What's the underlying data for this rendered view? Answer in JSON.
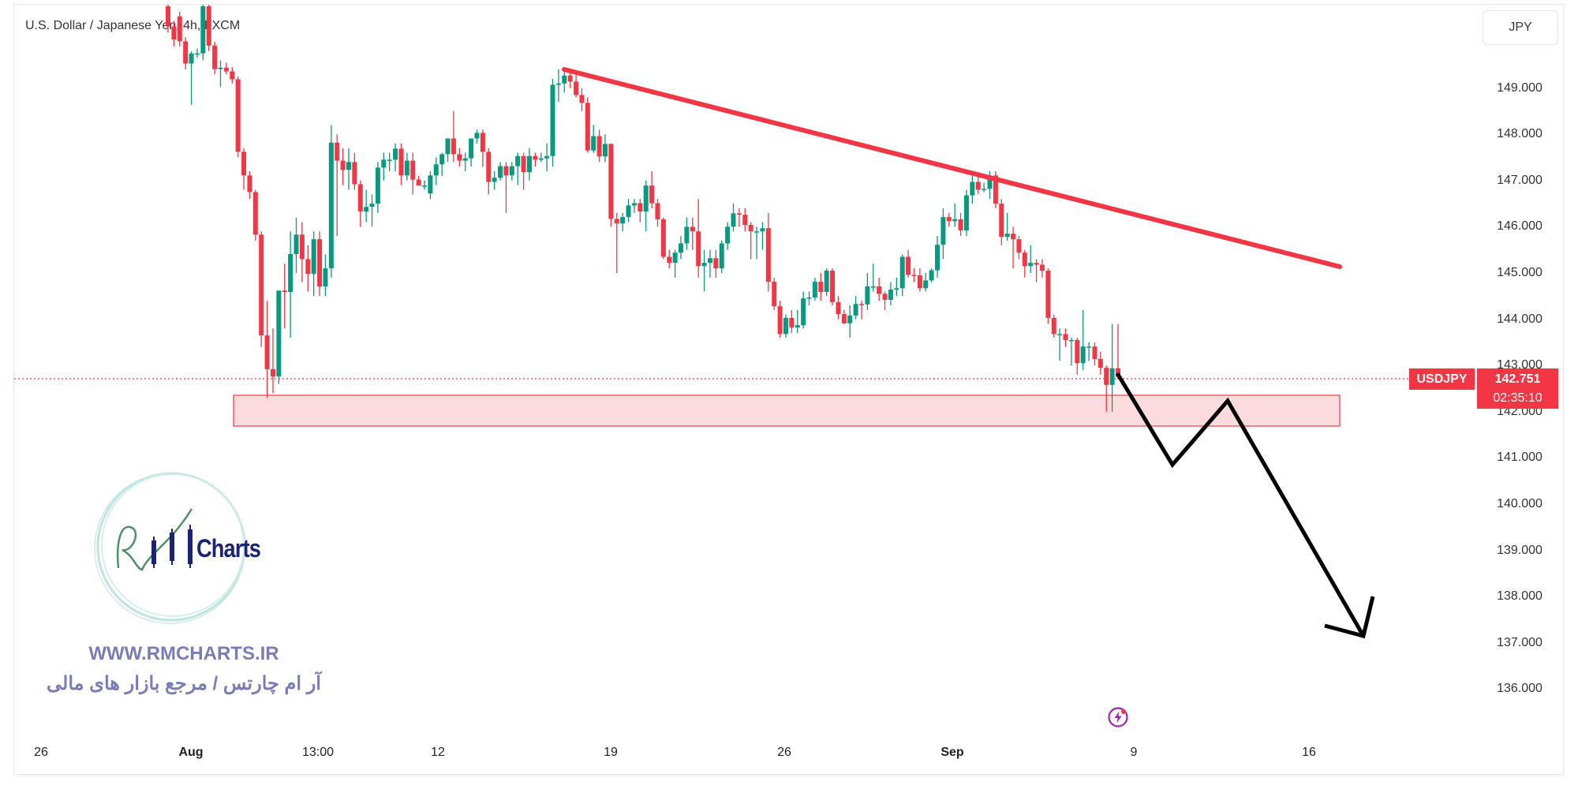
{
  "header": {
    "title": "U.S. Dollar / Japanese Yen, 4h, FXCM",
    "currency_button": "JPY"
  },
  "price_axis": {
    "labels": [
      "149.000",
      "148.000",
      "147.000",
      "146.000",
      "145.000",
      "144.000",
      "143.000",
      "142.000",
      "141.000",
      "140.000",
      "139.000",
      "138.000",
      "137.000",
      "136.000"
    ]
  },
  "time_axis": {
    "labels": [
      "26",
      "Aug",
      "13:00",
      "12",
      "19",
      "26",
      "Sep",
      "9",
      "16"
    ]
  },
  "last_price": {
    "symbol": "USDJPY",
    "price": "142.751",
    "countdown": "02:35:10"
  },
  "watermark": {
    "logo_text": "RM Charts",
    "logo_word": "Charts",
    "website": "WWW.RMCHARTS.IR",
    "tagline": "آر ام چارتس / مرجع بازار های مالی"
  },
  "colors": {
    "up": "#089981",
    "down": "#f23645",
    "trendline": "#f23645",
    "zone_fill": "#fcd7da",
    "projection": "#000000",
    "accent": "#f23645"
  },
  "icons": {
    "bottom": "lightning-icon"
  },
  "chart_data": {
    "type": "candlestick",
    "title": "U.S. Dollar / Japanese Yen, 4h, FXCM",
    "ylim": [
      135.5,
      150.8
    ],
    "ticks_y": [
      149,
      148,
      147,
      146,
      145,
      144,
      143,
      142,
      141,
      140,
      139,
      138,
      137,
      136
    ],
    "grid": false,
    "last_close": 142.751,
    "support_zone": [
      141.7,
      142.35
    ],
    "candles_ohlc": [
      [
        150.77,
        150.9,
        150.2,
        150.33
      ],
      [
        150.33,
        150.45,
        149.9,
        150.05
      ],
      [
        150.55,
        150.65,
        149.9,
        150.01
      ],
      [
        150.01,
        150.1,
        149.4,
        149.53
      ],
      [
        149.53,
        149.8,
        148.64,
        149.75
      ],
      [
        149.75,
        149.85,
        149.65,
        149.75
      ],
      [
        149.75,
        150.9,
        149.6,
        150.77
      ],
      [
        150.77,
        150.85,
        149.8,
        149.92
      ],
      [
        149.92,
        150.0,
        149.3,
        149.41
      ],
      [
        149.41,
        149.6,
        149.02,
        149.44
      ],
      [
        149.44,
        149.55,
        149.3,
        149.36
      ],
      [
        149.36,
        149.45,
        149.1,
        149.19
      ],
      [
        149.19,
        149.25,
        147.5,
        147.62
      ],
      [
        147.62,
        147.7,
        146.8,
        147.11
      ],
      [
        147.11,
        147.2,
        146.6,
        146.75
      ],
      [
        146.75,
        146.8,
        145.7,
        145.83
      ],
      [
        145.83,
        145.9,
        143.4,
        143.65
      ],
      [
        143.65,
        144.4,
        142.3,
        142.92
      ],
      [
        142.92,
        143.8,
        142.4,
        142.76
      ],
      [
        142.76,
        143.1,
        142.6,
        144.62
      ],
      [
        144.62,
        145.2,
        143.8,
        144.59
      ],
      [
        144.59,
        145.9,
        143.6,
        145.41
      ],
      [
        145.41,
        146.2,
        145.0,
        145.83
      ],
      [
        145.83,
        146.1,
        144.8,
        145.3
      ],
      [
        145.3,
        145.6,
        144.6,
        144.98
      ],
      [
        144.98,
        145.9,
        144.5,
        145.73
      ],
      [
        145.73,
        145.9,
        144.5,
        144.71
      ],
      [
        144.71,
        145.4,
        144.5,
        145.1
      ],
      [
        145.1,
        148.2,
        144.9,
        147.82
      ],
      [
        147.82,
        148.0,
        145.8,
        147.43
      ],
      [
        147.43,
        147.7,
        146.9,
        147.23
      ],
      [
        147.23,
        147.7,
        146.8,
        147.4
      ],
      [
        147.4,
        147.6,
        146.8,
        146.92
      ],
      [
        146.92,
        147.0,
        146.0,
        146.33
      ],
      [
        146.33,
        146.8,
        146.1,
        146.43
      ],
      [
        146.43,
        146.7,
        146.0,
        146.5
      ],
      [
        146.5,
        147.4,
        146.3,
        147.28
      ],
      [
        147.28,
        147.6,
        147.0,
        147.45
      ],
      [
        147.45,
        147.6,
        147.2,
        147.45
      ],
      [
        147.45,
        147.8,
        147.2,
        147.69
      ],
      [
        147.69,
        147.8,
        146.9,
        147.11
      ],
      [
        147.11,
        147.6,
        147.0,
        147.43
      ],
      [
        147.43,
        147.6,
        146.7,
        147.02
      ],
      [
        147.02,
        147.1,
        146.9,
        146.89
      ],
      [
        146.89,
        147.0,
        146.8,
        146.89
      ],
      [
        146.72,
        147.2,
        146.6,
        147.11
      ],
      [
        147.11,
        147.5,
        146.9,
        147.35
      ],
      [
        147.35,
        147.6,
        147.1,
        147.57
      ],
      [
        147.57,
        147.9,
        147.4,
        147.91
      ],
      [
        147.91,
        148.5,
        147.4,
        147.57
      ],
      [
        147.57,
        147.7,
        147.3,
        147.43
      ],
      [
        147.43,
        147.6,
        147.2,
        147.48
      ],
      [
        147.48,
        147.9,
        147.3,
        147.91
      ],
      [
        147.91,
        148.1,
        147.8,
        148.03
      ],
      [
        148.03,
        148.1,
        147.3,
        147.62
      ],
      [
        147.62,
        147.7,
        146.7,
        146.97
      ],
      [
        146.97,
        147.2,
        146.8,
        147.06
      ],
      [
        147.06,
        147.4,
        147.0,
        147.31
      ],
      [
        147.31,
        147.4,
        146.3,
        147.11
      ],
      [
        147.11,
        147.4,
        147.0,
        147.31
      ],
      [
        147.31,
        147.6,
        146.9,
        147.53
      ],
      [
        147.53,
        147.6,
        146.8,
        147.18
      ],
      [
        147.18,
        147.7,
        147.0,
        147.53
      ],
      [
        147.53,
        147.6,
        147.3,
        147.45
      ],
      [
        147.45,
        147.6,
        147.4,
        147.48
      ],
      [
        147.48,
        147.8,
        147.2,
        147.53
      ],
      [
        147.53,
        149.2,
        147.3,
        149.07
      ],
      [
        149.07,
        149.4,
        148.7,
        149.1
      ],
      [
        149.1,
        149.4,
        148.9,
        149.27
      ],
      [
        149.27,
        149.4,
        149.0,
        149.14
      ],
      [
        149.14,
        149.3,
        148.8,
        148.85
      ],
      [
        148.85,
        149.0,
        148.5,
        148.68
      ],
      [
        148.68,
        148.8,
        147.6,
        147.65
      ],
      [
        147.65,
        148.2,
        147.6,
        147.96
      ],
      [
        147.96,
        148.1,
        147.4,
        147.52
      ],
      [
        147.52,
        148.0,
        147.4,
        147.79
      ],
      [
        147.79,
        147.8,
        146.0,
        146.17
      ],
      [
        146.17,
        146.3,
        145.0,
        146.07
      ],
      [
        146.07,
        146.3,
        145.9,
        146.21
      ],
      [
        146.21,
        146.6,
        146.1,
        146.46
      ],
      [
        146.46,
        146.6,
        146.3,
        146.51
      ],
      [
        146.51,
        146.6,
        146.1,
        146.33
      ],
      [
        146.33,
        147.0,
        145.9,
        146.89
      ],
      [
        146.89,
        147.2,
        146.4,
        146.51
      ],
      [
        146.51,
        146.6,
        146.0,
        146.16
      ],
      [
        146.16,
        146.2,
        145.3,
        145.35
      ],
      [
        145.35,
        145.5,
        145.1,
        145.22
      ],
      [
        145.22,
        145.5,
        144.9,
        145.44
      ],
      [
        145.44,
        145.8,
        145.3,
        145.64
      ],
      [
        145.64,
        146.2,
        145.5,
        146.0
      ],
      [
        146.0,
        146.2,
        145.5,
        145.9
      ],
      [
        145.9,
        146.6,
        144.9,
        145.15
      ],
      [
        145.15,
        145.5,
        144.6,
        145.22
      ],
      [
        145.22,
        145.5,
        144.9,
        145.32
      ],
      [
        145.32,
        145.5,
        144.9,
        145.1
      ],
      [
        145.1,
        145.7,
        145.0,
        145.64
      ],
      [
        145.64,
        146.1,
        145.5,
        146.0
      ],
      [
        146.0,
        146.5,
        145.9,
        146.29
      ],
      [
        146.29,
        146.4,
        146.0,
        146.26
      ],
      [
        146.26,
        146.4,
        145.9,
        146.04
      ],
      [
        146.04,
        146.1,
        145.3,
        145.9
      ],
      [
        145.9,
        146.0,
        145.3,
        145.9
      ],
      [
        145.9,
        146.1,
        145.5,
        145.97
      ],
      [
        145.97,
        146.3,
        144.6,
        144.81
      ],
      [
        144.81,
        144.9,
        144.2,
        144.28
      ],
      [
        144.28,
        144.4,
        143.6,
        143.68
      ],
      [
        143.68,
        144.1,
        143.6,
        144.03
      ],
      [
        144.03,
        144.2,
        143.7,
        143.82
      ],
      [
        143.82,
        144.2,
        143.7,
        143.87
      ],
      [
        143.87,
        144.6,
        143.8,
        144.45
      ],
      [
        144.45,
        144.6,
        144.3,
        144.47
      ],
      [
        144.47,
        144.9,
        144.4,
        144.81
      ],
      [
        144.81,
        145.0,
        144.4,
        144.59
      ],
      [
        144.59,
        145.1,
        144.5,
        145.05
      ],
      [
        145.05,
        145.1,
        144.3,
        144.37
      ],
      [
        144.37,
        144.5,
        144.0,
        144.11
      ],
      [
        144.11,
        144.2,
        143.9,
        143.91
      ],
      [
        143.91,
        144.3,
        143.6,
        144.08
      ],
      [
        144.08,
        144.5,
        144.0,
        144.33
      ],
      [
        144.33,
        144.4,
        144.0,
        144.32
      ],
      [
        144.32,
        145.0,
        144.2,
        144.71
      ],
      [
        144.71,
        145.2,
        144.6,
        144.71
      ],
      [
        144.71,
        144.9,
        144.4,
        144.55
      ],
      [
        144.55,
        144.6,
        144.2,
        144.42
      ],
      [
        144.42,
        144.8,
        144.3,
        144.64
      ],
      [
        144.64,
        144.9,
        144.5,
        144.67
      ],
      [
        144.67,
        145.4,
        144.5,
        145.35
      ],
      [
        145.35,
        145.5,
        144.9,
        144.96
      ],
      [
        144.96,
        145.1,
        144.8,
        144.95
      ],
      [
        144.95,
        145.1,
        144.6,
        144.67
      ],
      [
        144.67,
        145.0,
        144.6,
        144.84
      ],
      [
        144.84,
        145.1,
        144.8,
        145.06
      ],
      [
        145.06,
        145.8,
        144.9,
        145.61
      ],
      [
        145.61,
        146.4,
        145.3,
        146.21
      ],
      [
        146.21,
        146.3,
        146.0,
        146.12
      ],
      [
        146.12,
        146.5,
        146.0,
        146.16
      ],
      [
        146.16,
        146.3,
        145.8,
        145.92
      ],
      [
        145.92,
        146.8,
        145.8,
        146.68
      ],
      [
        146.68,
        147.1,
        146.5,
        146.97
      ],
      [
        146.97,
        147.1,
        146.7,
        146.8
      ],
      [
        146.8,
        146.95,
        146.75,
        146.82
      ],
      [
        146.82,
        147.2,
        146.6,
        147.11
      ],
      [
        147.11,
        147.2,
        146.4,
        146.5
      ],
      [
        146.5,
        146.6,
        145.6,
        145.78
      ],
      [
        145.78,
        146.3,
        145.7,
        145.85
      ],
      [
        145.85,
        146.0,
        145.1,
        145.73
      ],
      [
        145.73,
        145.8,
        145.3,
        145.44
      ],
      [
        145.44,
        145.5,
        144.9,
        145.15
      ],
      [
        145.15,
        145.6,
        145.0,
        145.22
      ],
      [
        145.22,
        145.3,
        144.8,
        145.18
      ],
      [
        145.18,
        145.3,
        144.9,
        145.05
      ],
      [
        145.05,
        145.1,
        143.9,
        144.03
      ],
      [
        144.03,
        144.1,
        143.6,
        143.68
      ],
      [
        143.68,
        143.8,
        143.1,
        143.68
      ],
      [
        143.68,
        143.8,
        143.4,
        143.55
      ],
      [
        143.55,
        143.6,
        143.0,
        143.55
      ],
      [
        143.55,
        143.6,
        142.8,
        143.05
      ],
      [
        143.05,
        144.2,
        142.9,
        143.41
      ],
      [
        143.41,
        143.5,
        143.1,
        143.41
      ],
      [
        143.41,
        143.5,
        143.0,
        143.14
      ],
      [
        143.14,
        143.3,
        142.8,
        142.95
      ],
      [
        142.95,
        143.0,
        142.0,
        142.58
      ],
      [
        142.58,
        143.9,
        142.0,
        142.94
      ],
      [
        142.94,
        143.9,
        142.7,
        142.751
      ]
    ]
  }
}
